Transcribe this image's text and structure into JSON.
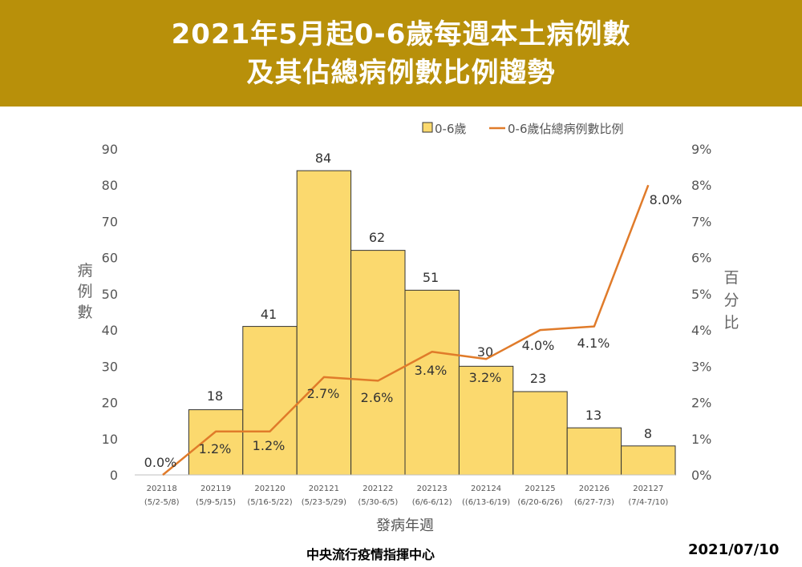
{
  "title_line1": "2021年5月起0-6歲每週本土病例數",
  "title_line2": "及其佔總病例數比例趨勢",
  "source": "中央流行疫情指揮中心",
  "date": "2021/07/10",
  "colors": {
    "header": "#b8900a",
    "bar": "#fbd96e",
    "bar_stroke": "#333333",
    "line": "#e07b2a"
  },
  "chart_data": {
    "type": "bar",
    "categories": [
      "202118",
      "202119",
      "202120",
      "202121",
      "202122",
      "202123",
      "202124",
      "202125",
      "202126",
      "202127"
    ],
    "category_ranges": [
      "(5/2-5/8)",
      "(5/9-5/15)",
      "(5/16-5/22)",
      "(5/23-5/29)",
      "(5/30-6/5)",
      "(6/6-6/12)",
      "((6/13-6/19)",
      "(6/20-6/26)",
      "(6/27-7/3)",
      "(7/4-7/10)"
    ],
    "series": [
      {
        "name": "0-6歲",
        "type": "bar",
        "axis": "left",
        "values": [
          0,
          18,
          41,
          84,
          62,
          51,
          30,
          23,
          13,
          8
        ],
        "labels": [
          "",
          "18",
          "41",
          "84",
          "62",
          "51",
          "30",
          "23",
          "13",
          "8"
        ]
      },
      {
        "name": "0-6歲佔總病例數比例",
        "type": "line",
        "axis": "right",
        "values": [
          0.0,
          1.2,
          1.2,
          2.7,
          2.6,
          3.4,
          3.2,
          4.0,
          4.1,
          8.0
        ],
        "labels": [
          "0.0%",
          "1.2%",
          "1.2%",
          "2.7%",
          "2.6%",
          "3.4%",
          "3.2%",
          "4.0%",
          "4.1%",
          "8.0%"
        ]
      }
    ],
    "xlabel": "發病年週",
    "ylabel": "病例數",
    "ylabel_right": "百分比",
    "ylim": [
      0,
      90
    ],
    "ylim_right": [
      0,
      9
    ],
    "yticks": [
      "0",
      "10",
      "20",
      "30",
      "40",
      "50",
      "60",
      "70",
      "80",
      "90"
    ],
    "yticks_right": [
      "0%",
      "1%",
      "2%",
      "3%",
      "4%",
      "5%",
      "6%",
      "7%",
      "8%",
      "9%"
    ],
    "legend_position": "top-right",
    "grid": false
  }
}
